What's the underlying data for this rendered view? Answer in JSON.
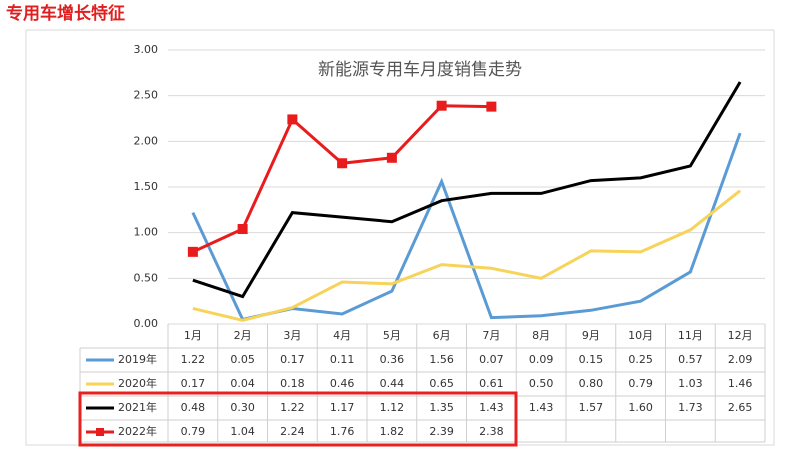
{
  "chart_data": {
    "type": "line",
    "header": "专用车增长特征",
    "title": "新能源专用车月度销售走势",
    "categories": [
      "1月",
      "2月",
      "3月",
      "4月",
      "5月",
      "6月",
      "7月",
      "8月",
      "9月",
      "10月",
      "11月",
      "12月"
    ],
    "ylim": [
      0,
      3
    ],
    "yticks": [
      {
        "value": 0,
        "label": "0.00"
      },
      {
        "value": 0.5,
        "label": "0.50"
      },
      {
        "value": 1,
        "label": "1.00"
      },
      {
        "value": 1.5,
        "label": "1.50"
      },
      {
        "value": 2,
        "label": "2.00"
      },
      {
        "value": 2.5,
        "label": "2.50"
      },
      {
        "value": 3,
        "label": "3.00"
      }
    ],
    "grid": true,
    "series": [
      {
        "name": "2019年",
        "color": "#5b9bd5",
        "values": [
          1.22,
          0.05,
          0.17,
          0.11,
          0.36,
          1.56,
          0.07,
          0.09,
          0.15,
          0.25,
          0.57,
          2.09
        ],
        "value_labels": [
          "1.22",
          "0.05",
          "0.17",
          "0.11",
          "0.36",
          "1.56",
          "0.07",
          "0.09",
          "0.15",
          "0.25",
          "0.57",
          "2.09"
        ]
      },
      {
        "name": "2020年",
        "color": "#f7d35a",
        "values": [
          0.17,
          0.04,
          0.18,
          0.46,
          0.44,
          0.65,
          0.61,
          0.5,
          0.8,
          0.79,
          1.03,
          1.46
        ],
        "value_labels": [
          "0.17",
          "0.04",
          "0.18",
          "0.46",
          "0.44",
          "0.65",
          "0.61",
          "0.50",
          "0.80",
          "0.79",
          "1.03",
          "1.46"
        ]
      },
      {
        "name": "2021年",
        "color": "#000000",
        "values": [
          0.48,
          0.3,
          1.22,
          1.17,
          1.12,
          1.35,
          1.43,
          1.43,
          1.57,
          1.6,
          1.73,
          2.65
        ],
        "value_labels": [
          "0.48",
          "0.30",
          "1.22",
          "1.17",
          "1.12",
          "1.35",
          "1.43",
          "1.43",
          "1.57",
          "1.60",
          "1.73",
          "2.65"
        ]
      },
      {
        "name": "2022年",
        "color": "#e81c1c",
        "marker": "square",
        "values": [
          0.79,
          1.04,
          2.24,
          1.76,
          1.82,
          2.39,
          2.38,
          null,
          null,
          null,
          null,
          null
        ],
        "value_labels": [
          "0.79",
          "1.04",
          "2.24",
          "1.76",
          "1.82",
          "2.39",
          "2.38",
          null,
          null,
          null,
          null,
          null
        ]
      }
    ]
  }
}
